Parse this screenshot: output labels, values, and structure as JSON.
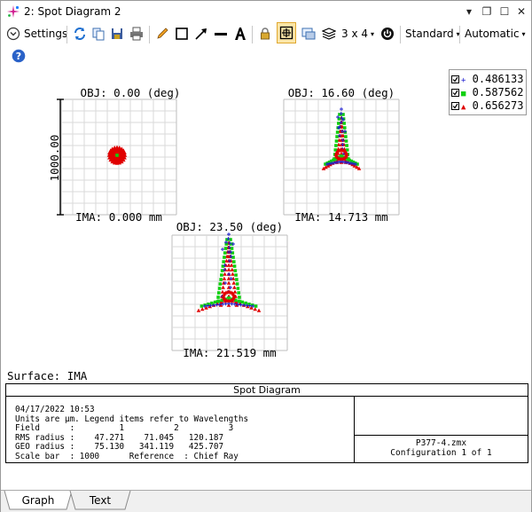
{
  "window": {
    "title": "2: Spot Diagram 2",
    "controls": {
      "dropdown": "▾",
      "restore": "❐",
      "minimize": "–",
      "maximize": "☐",
      "close": "✕"
    }
  },
  "toolbar": {
    "settings_label": "Settings",
    "layout_label": "3 x 4",
    "standard_label": "Standard",
    "automatic_label": "Automatic",
    "icons": [
      "refresh",
      "copy",
      "save",
      "print",
      "pencil",
      "rectangle",
      "arrow",
      "line",
      "text",
      "lock",
      "zoom-fit",
      "window",
      "layers",
      "grid-layout",
      "power-circle",
      "help"
    ]
  },
  "plots": [
    {
      "obj_label": "OBJ: 0.00 (deg)",
      "ima_label": "IMA: 0.000 mm"
    },
    {
      "obj_label": "OBJ: 16.60 (deg)",
      "ima_label": "IMA: 14.713 mm"
    },
    {
      "obj_label": "OBJ: 23.50 (deg)",
      "ima_label": "IMA: 21.519 mm"
    }
  ],
  "scale_label": "1000.00",
  "legend": [
    {
      "value": "0.486133",
      "marker": "+",
      "color": "#1c1cd0"
    },
    {
      "value": "0.587562",
      "marker": "■",
      "color": "#10d010"
    },
    {
      "value": "0.656273",
      "marker": "▲",
      "color": "#e00000"
    }
  ],
  "surface_label": "Surface: IMA",
  "info": {
    "header": "Spot Diagram",
    "lines": [
      "04/17/2022 10:53",
      "Units are µm. Legend items refer to Wavelengths",
      "Field      :         1          2          3",
      "RMS radius :    47.271    71.045   120.187",
      "GEO radius :    75.130   341.119   425.707",
      "Scale bar  : 1000      Reference  : Chief Ray"
    ],
    "file": "P377-4.zmx",
    "config": "Configuration 1 of 1"
  },
  "tabs": [
    "Graph",
    "Text"
  ]
}
